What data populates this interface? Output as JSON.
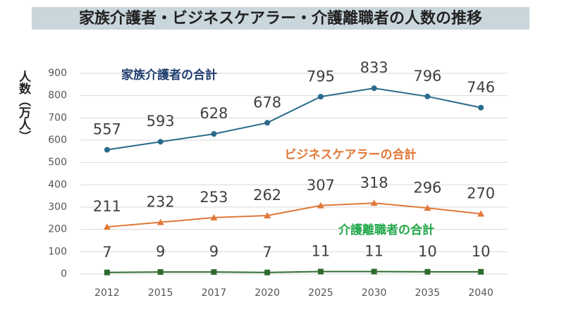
{
  "chart_data": {
    "type": "line",
    "title": "家族介護者・ビジネスケアラー・介護離職者の人数の推移",
    "y_label": "人数（万人）",
    "categories": [
      "2012",
      "2015",
      "2017",
      "2020",
      "2025",
      "2030",
      "2035",
      "2040"
    ],
    "series": [
      {
        "name": "家族介護者の合計",
        "color": "#2a6b8c",
        "label_color": "#1f3d6e",
        "marker": "circle",
        "values": [
          557,
          593,
          628,
          678,
          795,
          833,
          796,
          746
        ]
      },
      {
        "name": "ビジネスケアラーの合計",
        "color": "#e0793a",
        "label_color": "#e0793a",
        "marker": "triangle",
        "values": [
          211,
          232,
          253,
          262,
          307,
          318,
          296,
          270
        ]
      },
      {
        "name": "介護離職者の合計",
        "color": "#2e6b2e",
        "label_color": "#22a84a",
        "marker": "square",
        "values": [
          7,
          9,
          9,
          7,
          11,
          11,
          10,
          10
        ]
      }
    ],
    "ylim": [
      0,
      900
    ],
    "yticks": [
      0,
      100,
      200,
      300,
      400,
      500,
      600,
      700,
      800,
      900
    ],
    "grid": true
  }
}
